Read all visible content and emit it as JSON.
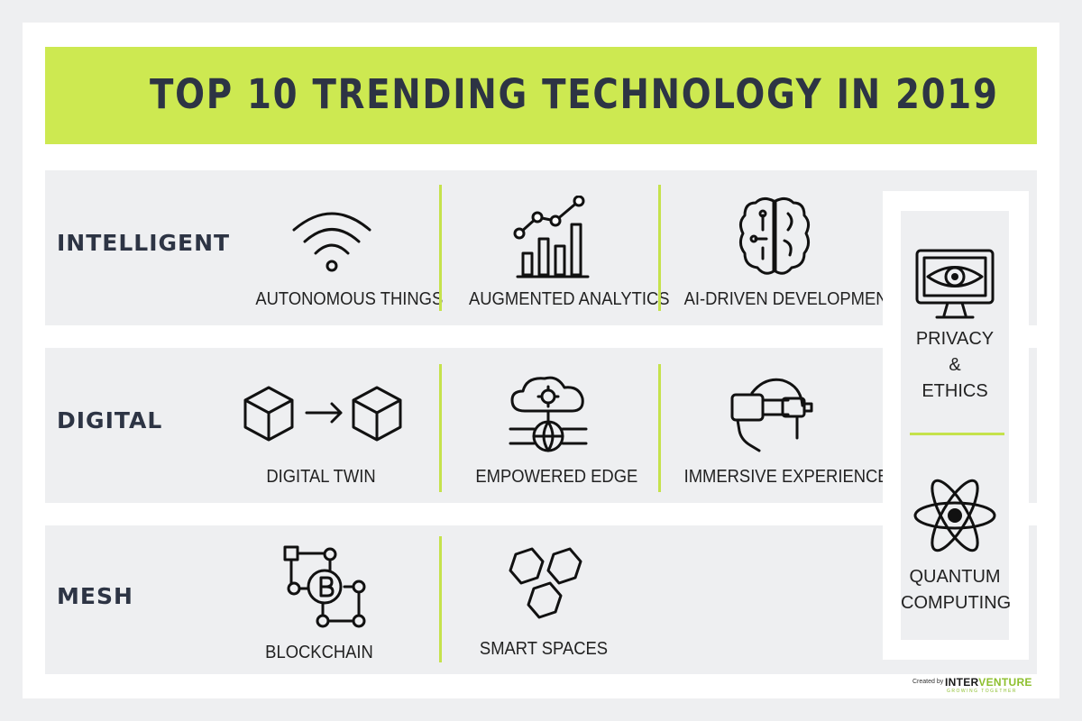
{
  "title": "TOP 10 TRENDING TECHNOLOGY IN 2019",
  "rows": {
    "intelligent": {
      "label": "INTELLIGENT",
      "items": [
        "AUTONOMOUS THINGS",
        "AUGMENTED ANALYTICS",
        "AI-DRIVEN DEVELOPMENT"
      ]
    },
    "digital": {
      "label": "DIGITAL",
      "items": [
        "DIGITAL TWIN",
        "EMPOWERED EDGE",
        "IMMERSIVE EXPERIENCE"
      ]
    },
    "mesh": {
      "label": "MESH",
      "items": [
        "BLOCKCHAIN",
        "SMART SPACES"
      ]
    }
  },
  "side": {
    "privacy_line1": "PRIVACY",
    "privacy_line2": "&",
    "privacy_line3": "ETHICS",
    "quantum_line1": "QUANTUM",
    "quantum_line2": "COMPUTING"
  },
  "credit": {
    "prefix": "Created by",
    "brand_a": "INTER",
    "brand_b": "VENTURE",
    "tagline": "GROWING TOGETHER"
  },
  "colors": {
    "accent": "#cde951",
    "divider": "#c5e24c",
    "text_dark": "#2d3444",
    "row_bg": "#eeeff1"
  },
  "icons": {
    "autonomous_things": "wifi-icon",
    "augmented_analytics": "bar-chart-icon",
    "ai_driven_development": "brain-circuit-icon",
    "digital_twin": "cube-arrow-cube-icon",
    "empowered_edge": "cloud-globe-icon",
    "immersive_experience": "vr-headset-icon",
    "blockchain": "bitcoin-network-icon",
    "smart_spaces": "hexagons-icon",
    "privacy_ethics": "monitor-eye-icon",
    "quantum_computing": "atom-icon"
  }
}
